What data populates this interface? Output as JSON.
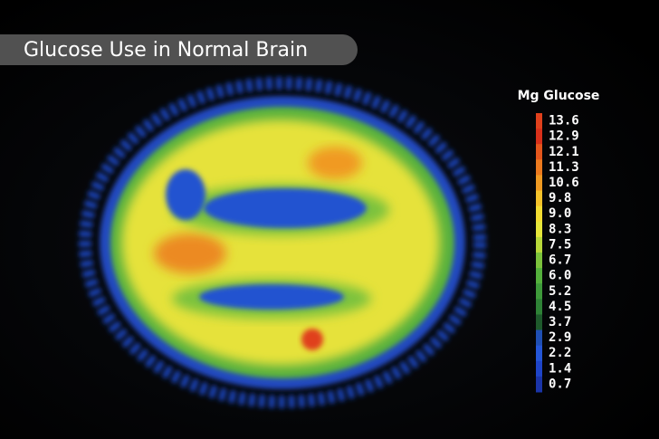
{
  "header": {
    "title": "Glucose Use in Normal Brain"
  },
  "legend": {
    "title": "Mg Glucose",
    "items": [
      {
        "label": "13.6",
        "color": "#e0401c"
      },
      {
        "label": "12.9",
        "color": "#d8301a"
      },
      {
        "label": "12.1",
        "color": "#e4561c"
      },
      {
        "label": "11.3",
        "color": "#ec7a1e"
      },
      {
        "label": "10.6",
        "color": "#f09a22"
      },
      {
        "label": "9.8",
        "color": "#f4c22a"
      },
      {
        "label": "9.0",
        "color": "#f2dc32"
      },
      {
        "label": "8.3",
        "color": "#e6e63a"
      },
      {
        "label": "7.5",
        "color": "#b8d83a"
      },
      {
        "label": "6.7",
        "color": "#7cc23c"
      },
      {
        "label": "6.0",
        "color": "#54b03c"
      },
      {
        "label": "5.2",
        "color": "#3e9a3a"
      },
      {
        "label": "4.5",
        "color": "#2e8236"
      },
      {
        "label": "3.7",
        "color": "#1e5a2c"
      },
      {
        "label": "2.9",
        "color": "#1f4fb4"
      },
      {
        "label": "2.2",
        "color": "#2456d8"
      },
      {
        "label": "1.4",
        "color": "#1e44c8"
      },
      {
        "label": "0.7",
        "color": "#1a34a8"
      }
    ]
  }
}
